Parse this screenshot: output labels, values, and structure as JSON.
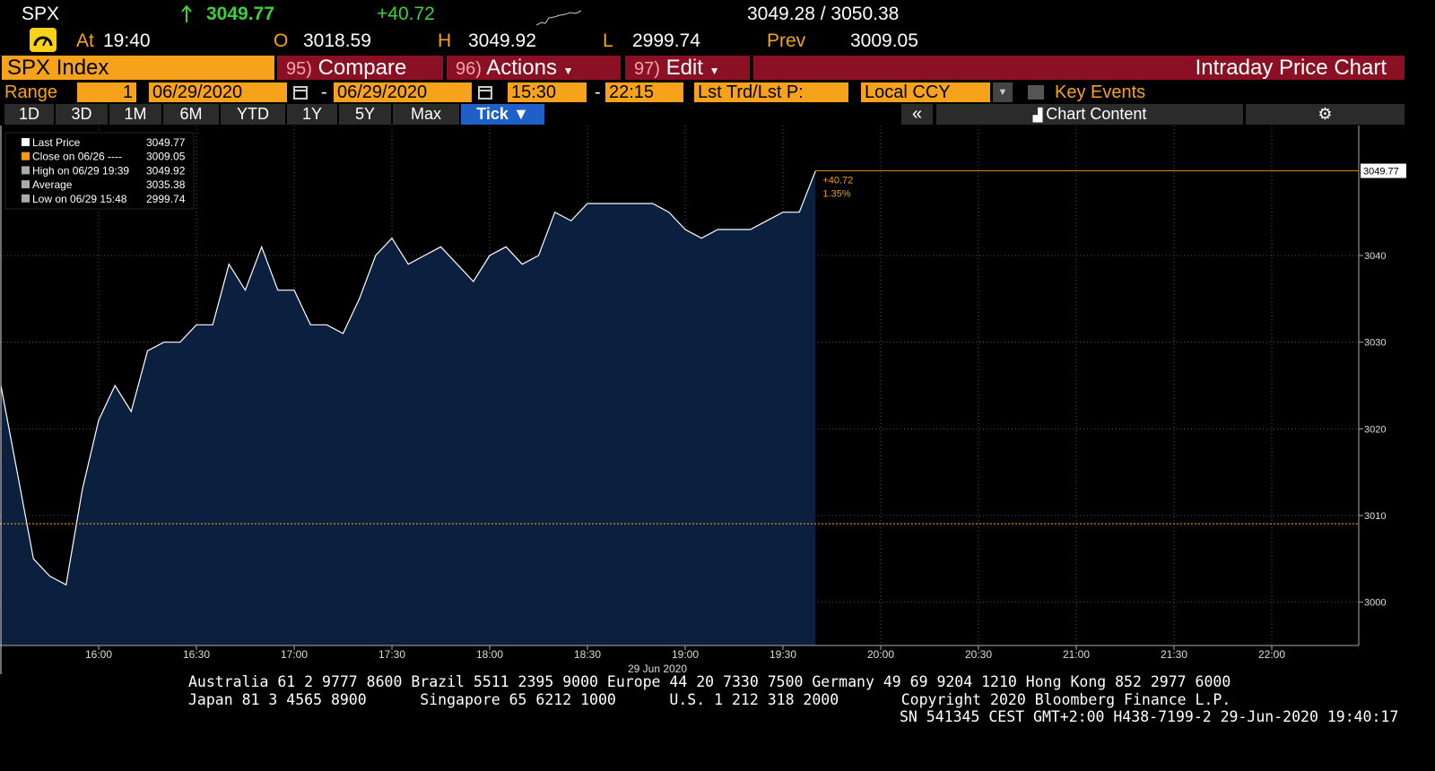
{
  "header": {
    "ticker": "SPX",
    "last": "3049.77",
    "change": "+40.72",
    "bid_ask": "3049.28 / 3050.38",
    "at_label": "At",
    "time": "19:40",
    "open_label": "O",
    "open": "3018.59",
    "high_label": "H",
    "high": "3049.92",
    "low_label": "L",
    "low": "2999.74",
    "prev_label": "Prev",
    "prev": "3009.05"
  },
  "toolbar": {
    "security": "SPX Index",
    "menus": [
      {
        "num": "95)",
        "label": "Compare"
      },
      {
        "num": "96)",
        "label": "Actions"
      },
      {
        "num": "97)",
        "label": "Edit"
      }
    ],
    "title": "Intraday Price Chart"
  },
  "range_bar": {
    "label": "Range",
    "count": "1",
    "start_date": "06/29/2020",
    "separator": "-",
    "end_date": "06/29/2020",
    "start_time": "15:30",
    "end_time": "22:15",
    "price_field": "Lst Trd/Lst P:",
    "currency": "Local CCY",
    "key_events": "Key Events"
  },
  "period_buttons": [
    "1D",
    "3D",
    "1M",
    "6M",
    "YTD",
    "1Y",
    "5Y",
    "Max",
    "Tick"
  ],
  "chart_content": "Chart Content",
  "chart_data": {
    "type": "area",
    "x_label": "29 Jun 2020",
    "x": [
      "15:30",
      "15:35",
      "15:40",
      "15:45",
      "15:50",
      "15:55",
      "16:00",
      "16:05",
      "16:10",
      "16:15",
      "16:20",
      "16:25",
      "16:30",
      "16:35",
      "16:40",
      "16:45",
      "16:50",
      "16:55",
      "17:00",
      "17:05",
      "17:10",
      "17:15",
      "17:20",
      "17:25",
      "17:30",
      "17:35",
      "17:40",
      "17:45",
      "17:50",
      "17:55",
      "18:00",
      "18:05",
      "18:10",
      "18:15",
      "18:20",
      "18:25",
      "18:30",
      "18:35",
      "18:40",
      "18:45",
      "18:50",
      "18:55",
      "19:00",
      "19:05",
      "19:10",
      "19:15",
      "19:20",
      "19:25",
      "19:30",
      "19:35",
      "19:40"
    ],
    "series": [
      {
        "color": "#ffffff",
        "fill": "#0b1f3f",
        "values": [
          3025,
          3015,
          3005,
          3003,
          3002,
          3013,
          3021,
          3025,
          3022,
          3029,
          3030,
          3030,
          3032,
          3032,
          3039,
          3036,
          3041,
          3036,
          3036,
          3032,
          3032,
          3031,
          3035,
          3040,
          3042,
          3039,
          3040,
          3041,
          3039,
          3037,
          3040,
          3041,
          3039,
          3040,
          3045,
          3044,
          3046,
          3046,
          3046,
          3046,
          3046,
          3045,
          3043,
          3042,
          3043,
          3043,
          3043,
          3044,
          3045,
          3045,
          3049.77
        ]
      }
    ],
    "legend": [
      {
        "label": "Last Price",
        "value": 3049.77,
        "color": "#ffffff"
      },
      {
        "label": "Close on 06/26 ----",
        "value": 3009.05,
        "color": "#f39c12"
      },
      {
        "label": "High on 06/29 19:39",
        "value": 3049.92,
        "color": "#aaaaaa"
      },
      {
        "label": "Average",
        "value": 3035.38,
        "color": "#aaaaaa"
      },
      {
        "label": "Low on 06/29 15:48",
        "value": 2999.74,
        "color": "#aaaaaa"
      }
    ],
    "annotations": [
      "+40.72",
      "1.35%"
    ],
    "annotation_color": "#f39c12",
    "xlim": [
      "15:30",
      "22:15"
    ],
    "xticks": [
      "16:00",
      "16:30",
      "17:00",
      "17:30",
      "18:00",
      "18:30",
      "19:00",
      "19:30",
      "20:00",
      "20:30",
      "21:00",
      "21:30",
      "22:00"
    ],
    "ylim": [
      2995,
      3055
    ],
    "yticks": [
      3000,
      3010,
      3020,
      3030,
      3040
    ],
    "grid": true
  },
  "footer": {
    "lines": [
      "Australia 61 2 9777 8600 Brazil 5511 2395 9000 Europe 44 20 7330 7500 Germany 49 69 9204 1210 Hong Kong 852 2977 6000",
      "Japan 81 3 4565 8900      Singapore 65 6212 1000      U.S. 1 212 318 2000       Copyright 2020 Bloomberg Finance L.P.",
      "SN 541345 CEST GMT+2:00 H438-7199-2 29-Jun-2020 19:40:17"
    ]
  }
}
